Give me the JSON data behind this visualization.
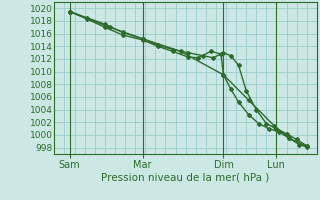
{
  "xlabel": "Pression niveau de la mer( hPa )",
  "bg_color": "#cce8e4",
  "grid_color": "#99cccc",
  "line_color": "#2d6b2d",
  "ylim": [
    997,
    1021
  ],
  "yticks": [
    998,
    1000,
    1002,
    1004,
    1006,
    1008,
    1010,
    1012,
    1014,
    1016,
    1018,
    1020
  ],
  "xtick_labels": [
    "Sam",
    "Mar",
    "Dim",
    "Lun"
  ],
  "xtick_positions": [
    0.06,
    0.35,
    0.67,
    0.88
  ],
  "vline_positions": [
    0.06,
    0.35,
    0.67,
    0.88
  ],
  "lines": [
    {
      "x": [
        0.06,
        0.22,
        0.35,
        0.5,
        0.67,
        0.77,
        0.87,
        0.93,
        1.0
      ],
      "y": [
        1019.5,
        1017.0,
        1015.2,
        1013.2,
        1009.5,
        1005.5,
        1001.5,
        999.5,
        998.2
      ],
      "marker": "D",
      "ms": 2.0,
      "lw": 1.0
    },
    {
      "x": [
        0.06,
        0.13,
        0.2,
        0.27,
        0.35,
        0.41,
        0.47,
        0.53,
        0.59,
        0.63,
        0.67,
        0.7,
        0.73,
        0.76,
        0.8,
        0.84,
        0.88,
        0.92,
        0.96,
        1.0
      ],
      "y": [
        1019.5,
        1018.5,
        1017.5,
        1016.2,
        1015.2,
        1014.2,
        1013.5,
        1013.0,
        1012.5,
        1012.2,
        1013.0,
        1012.5,
        1011.0,
        1007.0,
        1004.0,
        1001.8,
        1001.0,
        1000.2,
        999.3,
        998.3
      ],
      "marker": "D",
      "ms": 2.0,
      "lw": 1.0
    },
    {
      "x": [
        0.06,
        0.13,
        0.2,
        0.27,
        0.35,
        0.41,
        0.47,
        0.53,
        0.57,
        0.62,
        0.66,
        0.67,
        0.7,
        0.73,
        0.77,
        0.81,
        0.85,
        0.89,
        0.93,
        0.97,
        1.0
      ],
      "y": [
        1019.5,
        1018.3,
        1017.0,
        1015.8,
        1015.0,
        1014.0,
        1013.2,
        1012.3,
        1012.2,
        1013.2,
        1012.8,
        1009.5,
        1007.2,
        1005.2,
        1003.2,
        1001.8,
        1001.0,
        1000.5,
        999.5,
        998.5,
        998.1
      ],
      "marker": "D",
      "ms": 2.0,
      "lw": 1.0
    }
  ]
}
